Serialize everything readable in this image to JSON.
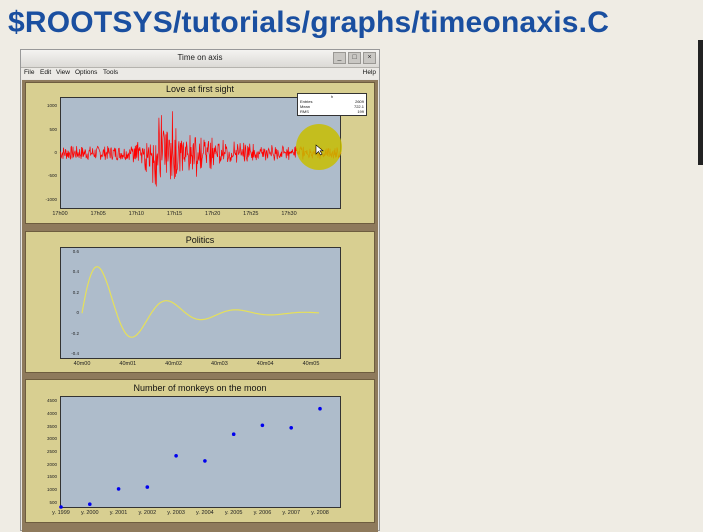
{
  "headline": "$ROOTSYS/tutorials/graphs/timeonaxis.C",
  "window": {
    "title": "Time on axis",
    "menu": [
      "File",
      "Edit",
      "View",
      "Options",
      "Tools"
    ],
    "help": "Help",
    "controls": [
      "_",
      "□",
      "×"
    ]
  },
  "colors": {
    "pad": "#d8cf91",
    "frame": "#aebccb",
    "line1": "#ff0000",
    "line2": "#e6e05a",
    "points": "#0000ee"
  },
  "stats": {
    "header": "h",
    "rows": [
      {
        "name": "Entries",
        "value": "2609"
      },
      {
        "name": "Mean",
        "value": "722.1"
      },
      {
        "name": "RMS",
        "value": "199"
      }
    ]
  },
  "chart_data": [
    {
      "type": "line",
      "title": "Love at first sight",
      "ylim": [
        -1200,
        1200
      ],
      "yticks": [
        "1000",
        "500",
        "0",
        "-500",
        "-1000"
      ],
      "xticks": [
        "17h00",
        "17h05",
        "17h10",
        "17h15",
        "17h20",
        "17h25",
        "17h30"
      ],
      "series": [
        {
          "x": [
            0,
            0.25,
            0.39,
            0.45,
            0.55,
            0.8,
            1.0
          ],
          "y": [
            150,
            150,
            1050,
            700,
            300,
            160,
            150
          ]
        }
      ]
    },
    {
      "type": "line",
      "title": "Politics",
      "ylim": [
        -0.45,
        0.65
      ],
      "yticks": [
        "0.6",
        "0.4",
        "0.2",
        "0",
        "-0.2",
        "-0.4"
      ],
      "xticks": [
        "40m00",
        "40m01",
        "40m02",
        "40m03",
        "40m04",
        "40m05"
      ],
      "series": [
        {
          "x": [
            0,
            0.5,
            1,
            1.5,
            2,
            2.5,
            3,
            3.5,
            4,
            4.5,
            5,
            6,
            7,
            8,
            9,
            10
          ],
          "y": [
            0,
            0.3,
            0.55,
            0.35,
            0.0,
            -0.3,
            -0.35,
            -0.1,
            0.15,
            0.2,
            0.15,
            -0.1,
            0.05,
            -0.03,
            0.01,
            0.0
          ]
        }
      ]
    },
    {
      "type": "scatter",
      "title": "Number of monkeys on the moon",
      "ylim": [
        300,
        4700
      ],
      "yticks": [
        "4500",
        "4000",
        "3500",
        "3000",
        "2500",
        "2000",
        "1500",
        "1000",
        "500"
      ],
      "categories": [
        "y. 1999",
        "y. 2000",
        "y. 2001",
        "y. 2002",
        "y. 2003",
        "y. 2004",
        "y. 2005",
        "y. 2006",
        "y. 2007",
        "y. 2008"
      ],
      "values": [
        200,
        450,
        1050,
        1120,
        2350,
        2150,
        3200,
        3550,
        3450,
        4200
      ]
    }
  ]
}
